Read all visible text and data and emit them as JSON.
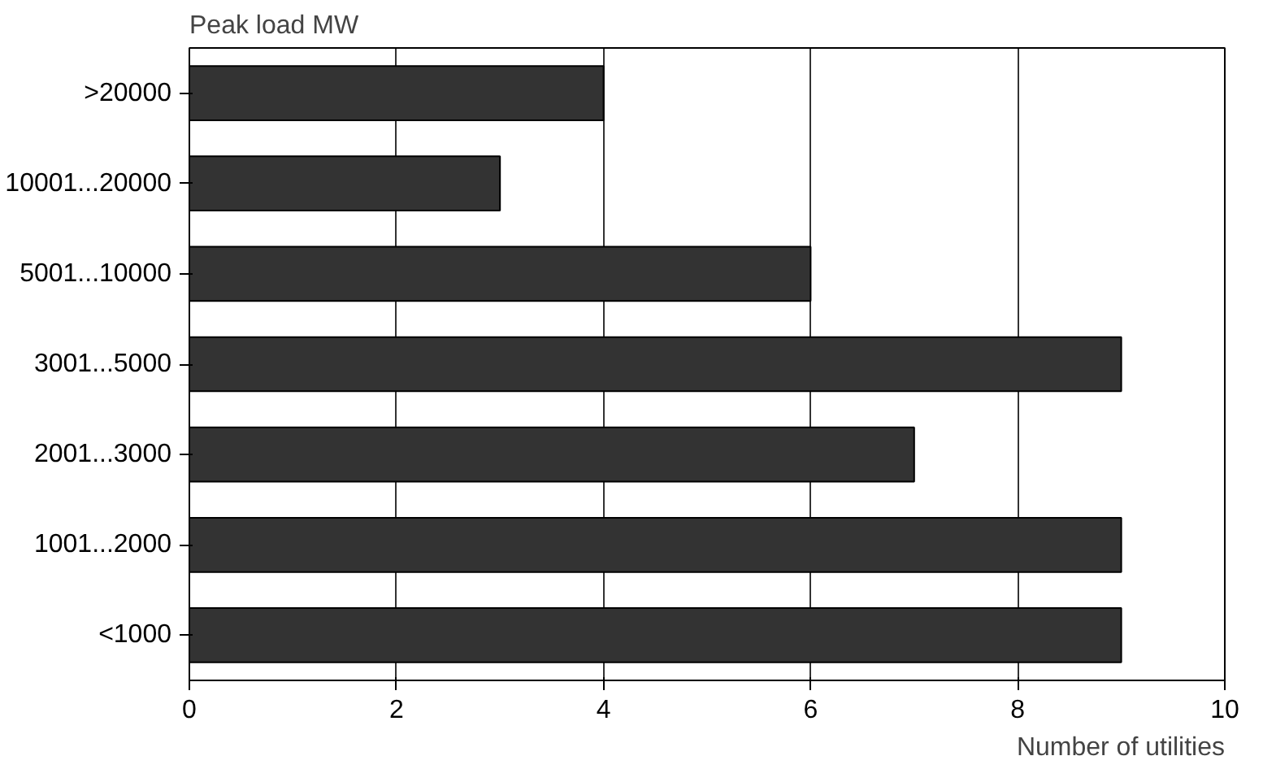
{
  "chart_data": {
    "type": "bar",
    "orientation": "horizontal",
    "ylabel": "Peak load MW",
    "xlabel": "Number of utilities",
    "categories": [
      ">20000",
      "10001...20000",
      "5001...10000",
      "3001...5000",
      "2001...3000",
      "1001...2000",
      "<1000"
    ],
    "values": [
      4,
      3,
      6,
      9,
      7,
      9,
      9
    ],
    "color": "#333333",
    "xlim": [
      0,
      10
    ],
    "xticks": [
      0,
      2,
      4,
      6,
      8,
      10
    ],
    "grid": "x"
  }
}
